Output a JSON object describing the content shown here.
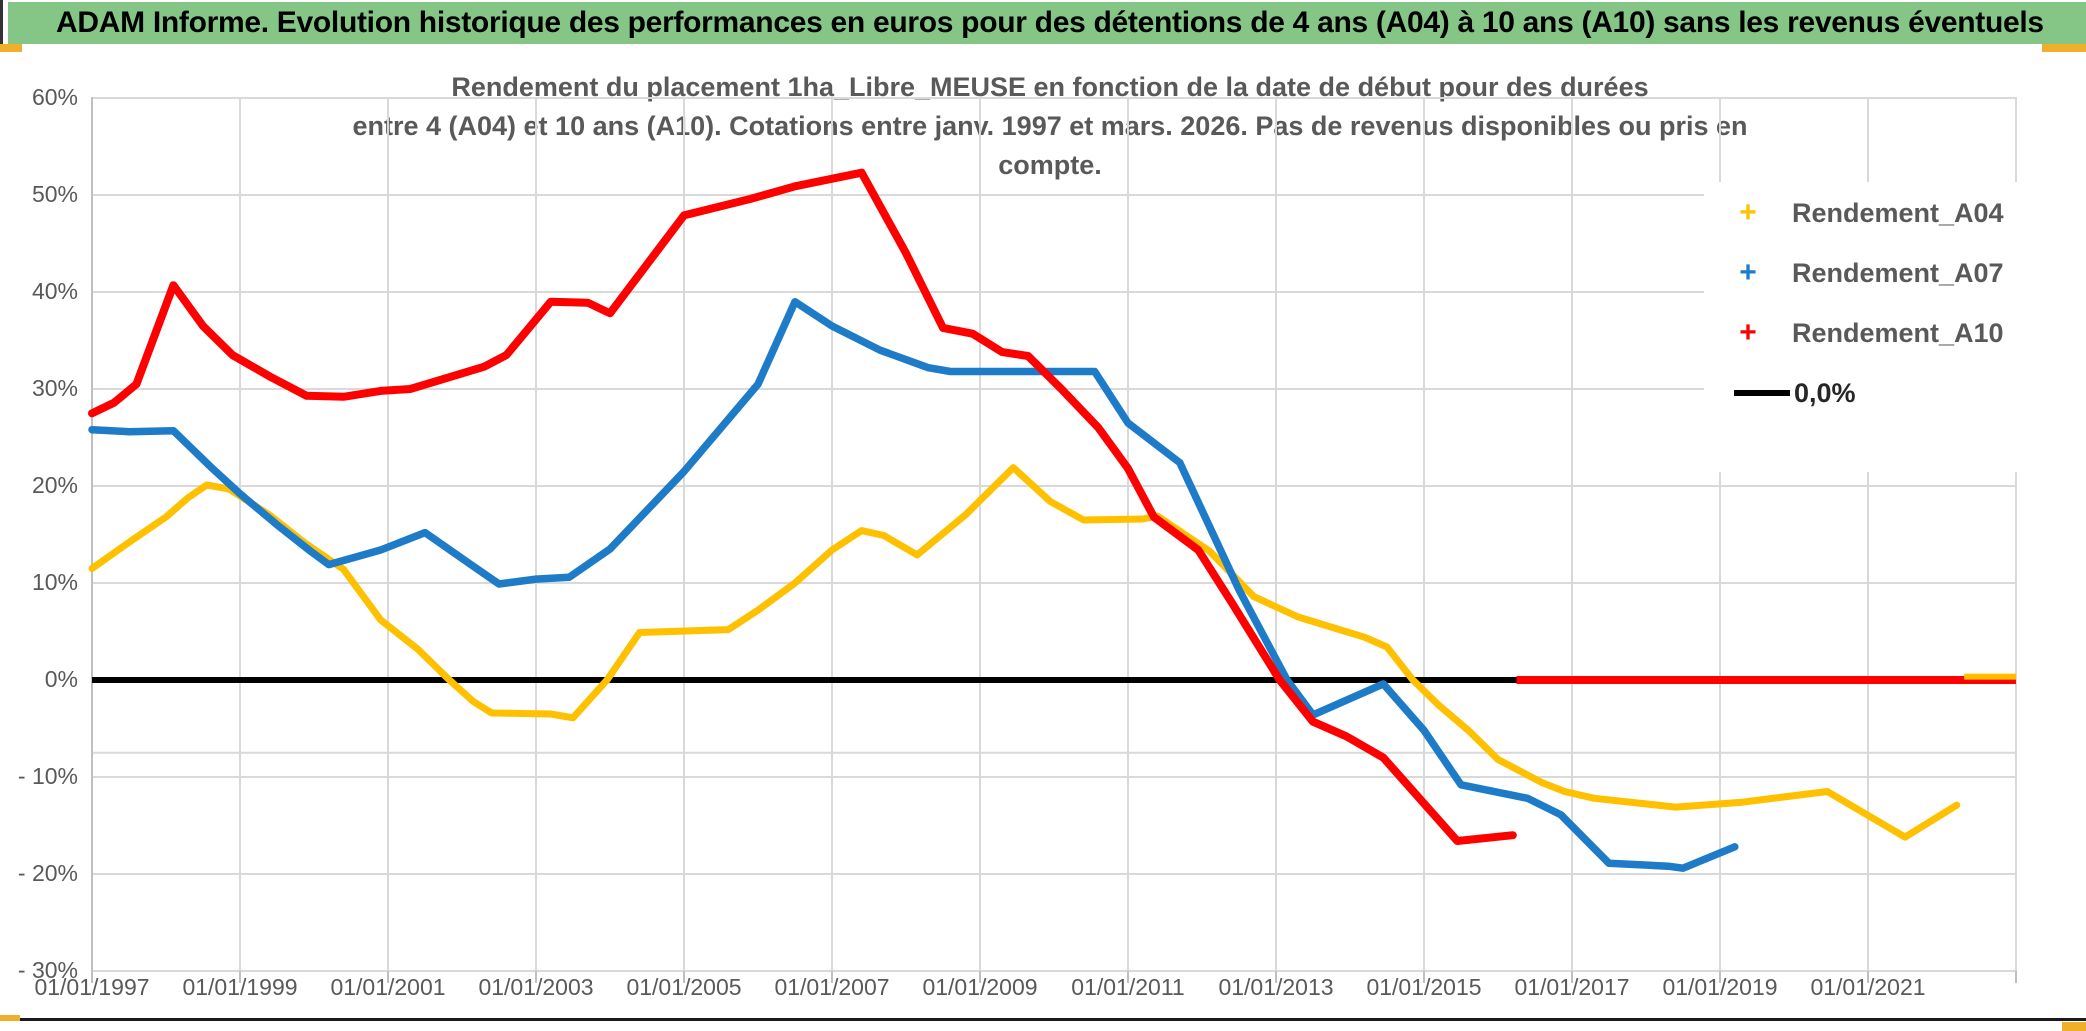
{
  "banner": {
    "title": "ADAM Informe. Evolution historique des performances en euros pour des détentions de 4 ans (A04) à 10 ans (A10) sans les revenus éventuels"
  },
  "chart": {
    "title_line1": "Rendement du placement 1ha_Libre_MEUSE en fonction de la date de début pour des durées",
    "title_line2": "entre 4 (A04) et 10 ans (A10). Cotations entre janv. 1997 et mars. 2026. Pas de revenus disponibles ou pris en compte.",
    "legend": [
      {
        "id": "a04",
        "label": "Rendement_A04",
        "marker": "+",
        "color": "#FFC000"
      },
      {
        "id": "a07",
        "label": "Rendement_A07",
        "marker": "+",
        "color": "#1E7BC8"
      },
      {
        "id": "a10",
        "label": "Rendement_A10",
        "marker": "+",
        "color": "#FE0000"
      },
      {
        "id": "zero",
        "label": "0,0%",
        "marker": "line",
        "color": "#000000"
      }
    ]
  },
  "chart_data": {
    "type": "line",
    "title": "Rendement du placement 1ha_Libre_MEUSE en fonction de la date de début pour des durées entre 4 (A04) et 10 ans (A10)",
    "x_axis": {
      "labels": [
        "01/01/1997",
        "01/01/1999",
        "01/01/2001",
        "01/01/2003",
        "01/01/2005",
        "01/01/2007",
        "01/01/2009",
        "01/01/2011",
        "01/01/2013",
        "01/01/2015",
        "01/01/2017",
        "01/01/2019",
        "01/01/2021"
      ],
      "label_years": [
        1997,
        1999,
        2001,
        2003,
        2005,
        2007,
        2009,
        2011,
        2013,
        2015,
        2017,
        2019,
        2021
      ],
      "gridline_years": [
        1999,
        2001,
        2003,
        2005,
        2007,
        2009,
        2011,
        2013,
        2015,
        2017,
        2019,
        2021,
        2023
      ],
      "range": [
        1997,
        2023
      ]
    },
    "y_axis": {
      "tick_labels": [
        "60%",
        "50%",
        "40%",
        "30%",
        "20%",
        "10%",
        "0%",
        "- 10%",
        "- 20%",
        "- 30%"
      ],
      "tick_values": [
        60,
        50,
        40,
        30,
        20,
        10,
        0,
        -10,
        -20,
        -30
      ],
      "extra_line_value": -7.5,
      "range": [
        -30,
        60
      ],
      "grid": true
    },
    "series": [
      {
        "name": "Rendement_A04",
        "color": "#FFC000",
        "width": 7,
        "points": [
          [
            1997.0,
            11.5
          ],
          [
            1997.5,
            14.2
          ],
          [
            1998.0,
            16.8
          ],
          [
            1998.3,
            18.8
          ],
          [
            1998.55,
            20.1
          ],
          [
            1998.85,
            19.7
          ],
          [
            1999.4,
            17.0
          ],
          [
            1999.9,
            14.0
          ],
          [
            2000.4,
            11.4
          ],
          [
            2000.9,
            6.2
          ],
          [
            2001.4,
            3.2
          ],
          [
            2001.83,
            0.0
          ],
          [
            2002.15,
            -2.2
          ],
          [
            2002.4,
            -3.4
          ],
          [
            2003.2,
            -3.5
          ],
          [
            2003.5,
            -3.9
          ],
          [
            2003.96,
            0.0
          ],
          [
            2004.4,
            4.9
          ],
          [
            2005.6,
            5.2
          ],
          [
            2006.0,
            7.2
          ],
          [
            2006.5,
            10.0
          ],
          [
            2007.0,
            13.4
          ],
          [
            2007.4,
            15.4
          ],
          [
            2007.7,
            14.9
          ],
          [
            2008.15,
            12.9
          ],
          [
            2008.8,
            17.0
          ],
          [
            2009.45,
            21.9
          ],
          [
            2009.95,
            18.4
          ],
          [
            2010.4,
            16.5
          ],
          [
            2011.2,
            16.6
          ],
          [
            2011.4,
            16.9
          ],
          [
            2012.1,
            13.3
          ],
          [
            2012.7,
            8.6
          ],
          [
            2013.3,
            6.5
          ],
          [
            2014.2,
            4.4
          ],
          [
            2014.5,
            3.4
          ],
          [
            2014.85,
            0.0
          ],
          [
            2015.2,
            -2.6
          ],
          [
            2015.6,
            -5.2
          ],
          [
            2016.0,
            -8.2
          ],
          [
            2016.6,
            -10.6
          ],
          [
            2016.9,
            -11.5
          ],
          [
            2017.3,
            -12.2
          ],
          [
            2018.4,
            -13.1
          ],
          [
            2019.3,
            -12.6
          ],
          [
            2020.45,
            -11.5
          ],
          [
            2021.5,
            -16.2
          ],
          [
            2022.2,
            -12.9
          ]
        ]
      },
      {
        "name": "Rendement_A07",
        "color": "#1E7BC8",
        "width": 7.5,
        "points": [
          [
            1997.0,
            25.8
          ],
          [
            1997.5,
            25.6
          ],
          [
            1998.1,
            25.7
          ],
          [
            1998.6,
            22.0
          ],
          [
            1999.0,
            19.2
          ],
          [
            1999.5,
            16.0
          ],
          [
            1999.95,
            13.3
          ],
          [
            2000.2,
            11.9
          ],
          [
            2000.9,
            13.4
          ],
          [
            2001.5,
            15.2
          ],
          [
            2002.1,
            12.0
          ],
          [
            2002.5,
            9.9
          ],
          [
            2003.0,
            10.4
          ],
          [
            2003.45,
            10.6
          ],
          [
            2004.0,
            13.5
          ],
          [
            2005.0,
            21.5
          ],
          [
            2006.0,
            30.5
          ],
          [
            2006.5,
            39.0
          ],
          [
            2007.0,
            36.5
          ],
          [
            2007.65,
            34.0
          ],
          [
            2008.3,
            32.2
          ],
          [
            2008.6,
            31.8
          ],
          [
            2010.55,
            31.8
          ],
          [
            2011.0,
            26.5
          ],
          [
            2011.7,
            22.4
          ],
          [
            2012.5,
            9.3
          ],
          [
            2013.15,
            0.0
          ],
          [
            2013.5,
            -3.6
          ],
          [
            2014.45,
            -0.4
          ],
          [
            2015.0,
            -5.2
          ],
          [
            2015.5,
            -10.8
          ],
          [
            2016.4,
            -12.2
          ],
          [
            2016.85,
            -13.9
          ],
          [
            2017.5,
            -18.9
          ],
          [
            2018.3,
            -19.2
          ],
          [
            2018.5,
            -19.4
          ],
          [
            2019.2,
            -17.2
          ]
        ]
      },
      {
        "name": "Rendement_A10",
        "color": "#FE0000",
        "width": 8,
        "points": [
          [
            1997.0,
            27.5
          ],
          [
            1997.3,
            28.6
          ],
          [
            1997.6,
            30.5
          ],
          [
            1998.1,
            40.7
          ],
          [
            1998.5,
            36.5
          ],
          [
            1998.9,
            33.5
          ],
          [
            1999.4,
            31.3
          ],
          [
            1999.9,
            29.3
          ],
          [
            2000.4,
            29.2
          ],
          [
            2000.9,
            29.8
          ],
          [
            2001.3,
            30.0
          ],
          [
            2002.3,
            32.3
          ],
          [
            2002.6,
            33.5
          ],
          [
            2003.2,
            39.0
          ],
          [
            2003.7,
            38.9
          ],
          [
            2004.0,
            37.8
          ],
          [
            2005.0,
            47.9
          ],
          [
            2005.9,
            49.6
          ],
          [
            2006.5,
            50.9
          ],
          [
            2007.4,
            52.3
          ],
          [
            2008.0,
            44.0
          ],
          [
            2008.5,
            36.3
          ],
          [
            2008.9,
            35.7
          ],
          [
            2009.3,
            33.8
          ],
          [
            2009.65,
            33.4
          ],
          [
            2010.1,
            30.0
          ],
          [
            2010.6,
            26.0
          ],
          [
            2011.0,
            21.8
          ],
          [
            2011.35,
            16.8
          ],
          [
            2011.95,
            13.4
          ],
          [
            2012.4,
            8.0
          ],
          [
            2013.05,
            0.0
          ],
          [
            2013.5,
            -4.3
          ],
          [
            2013.95,
            -5.8
          ],
          [
            2014.45,
            -8.0
          ],
          [
            2015.45,
            -16.6
          ],
          [
            2016.2,
            -16.0
          ]
        ]
      }
    ],
    "zero_line": {
      "name": "0,0%",
      "color": "#000000",
      "value": 0.0,
      "from": 1997.0,
      "to": 2023.0,
      "width": 6
    },
    "zero_value_segments": [
      {
        "series": "Rendement_A10",
        "color": "#FE0000",
        "from": 2016.25,
        "to": 2023.0,
        "value": 0.0,
        "width": 8
      },
      {
        "series": "Rendement_A04",
        "color": "#FFC000",
        "from": 2022.3,
        "to": 2023.0,
        "value": 0.35,
        "width": 6
      }
    ],
    "legend_position": "right-inside"
  },
  "colors": {
    "banner_bg": "#85C686",
    "grid": "#D9D9D9",
    "axis": "#BFBFBF",
    "text_gray": "#595959",
    "accent_orange": "#F0AF28"
  }
}
